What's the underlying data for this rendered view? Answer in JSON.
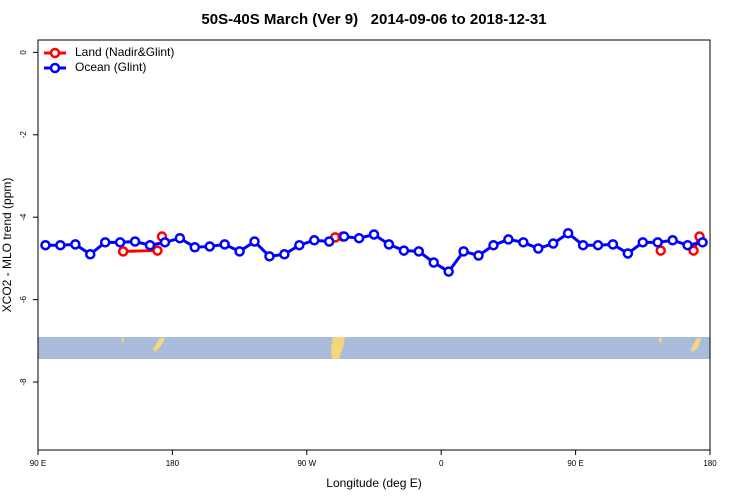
{
  "chart_data": {
    "type": "line",
    "title": "50S-40S March (Ver 9)   2014-09-06 to 2018-12-31",
    "x_label": "Longitude (deg E)",
    "y_label": "XCO2 - MLO trend (ppm)",
    "xlim": [
      90,
      540
    ],
    "ylim": [
      -9.65,
      0.3
    ],
    "xticks": [
      {
        "value": 90,
        "label": "90 E"
      },
      180,
      {
        "value": 270,
        "label": "90 W"
      },
      {
        "value": 360,
        "label": "0"
      },
      {
        "value": 450,
        "label": "90 E"
      },
      {
        "value": 540,
        "label": "180"
      }
    ],
    "yticks": [
      0,
      -2,
      -4,
      -6,
      -8
    ],
    "legend": "top-left",
    "x": [
      95,
      105,
      115,
      125,
      135,
      145,
      155,
      165,
      175,
      185,
      195,
      205,
      215,
      225,
      235,
      245,
      255,
      265,
      275,
      285,
      295,
      305,
      315,
      325,
      335,
      345,
      355,
      365,
      375,
      385,
      395,
      405,
      415,
      425,
      435,
      445,
      455,
      465,
      475,
      485,
      495,
      505,
      515,
      525,
      535
    ],
    "series": [
      {
        "name": "Land (Nadir&Glint)",
        "color": "#ff0000",
        "x": [
          147,
          170,
          null,
          173,
          null,
          289,
          294,
          null,
          507,
          null,
          529,
          533
        ],
        "values": [
          -4.83,
          -4.81,
          null,
          -4.47,
          null,
          -4.49,
          -4.47,
          null,
          -4.81,
          null,
          -4.81,
          -4.47
        ]
      },
      {
        "name": "Ocean (Glint)",
        "color": "#0000ff",
        "values": [
          -4.68,
          -4.68,
          -4.66,
          -4.9,
          -4.61,
          -4.61,
          -4.59,
          -4.68,
          -4.61,
          -4.51,
          -4.73,
          -4.71,
          -4.66,
          -4.83,
          -4.59,
          -4.95,
          -4.9,
          -4.68,
          -4.56,
          -4.59,
          -4.47,
          -4.51,
          -4.42,
          -4.66,
          -4.81,
          -4.83,
          -5.1,
          -5.32,
          -4.83,
          -4.93,
          -4.68,
          -4.54,
          -4.61,
          -4.76,
          -4.64,
          -4.39,
          -4.68,
          -4.68,
          -4.66,
          -4.88,
          -4.61,
          -4.61,
          -4.56,
          -4.68,
          -4.61
        ]
      }
    ]
  }
}
